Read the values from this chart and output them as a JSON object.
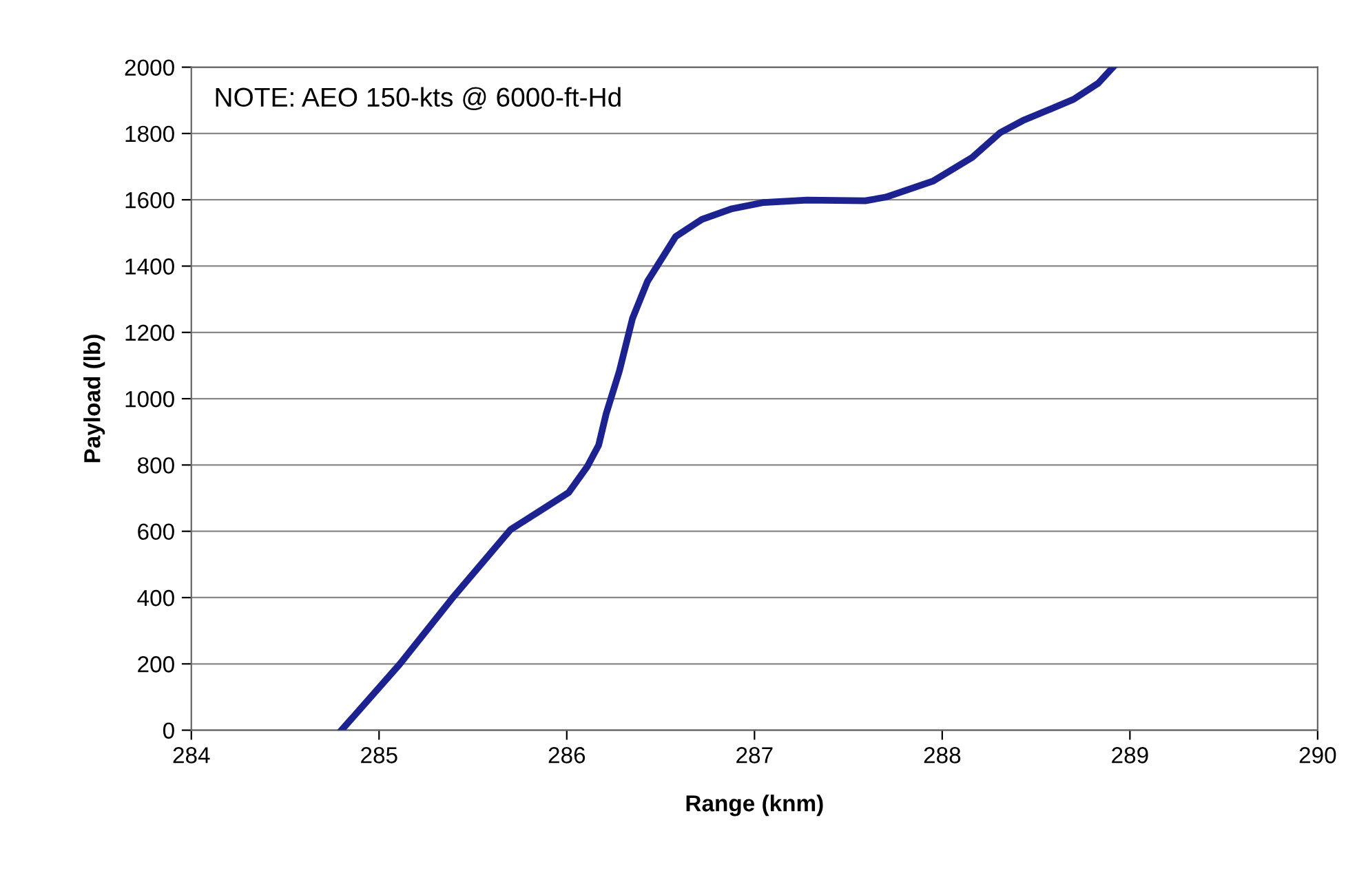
{
  "chart_data": {
    "type": "line",
    "xlabel": "Range (knm)",
    "ylabel": "Payload (lb)",
    "annotations": [
      "NOTE: AEO 150-kts @ 6000-ft-Hd"
    ],
    "x": [
      284.8,
      285.11,
      285.39,
      285.7,
      285.9,
      286.01,
      286.11,
      286.17,
      286.21,
      286.28,
      286.35,
      286.43,
      286.58,
      286.72,
      286.88,
      287.05,
      287.28,
      287.59,
      287.7,
      287.95,
      288.16,
      288.31,
      288.43,
      288.6,
      288.7,
      288.83,
      288.91
    ],
    "series": [
      {
        "color": "#1c2290",
        "values": [
          0,
          199,
          398,
          605,
          677,
          717,
          796,
          860,
          955,
          1083,
          1242,
          1354,
          1489,
          1541,
          1573,
          1592,
          1599,
          1597,
          1608,
          1656,
          1728,
          1803,
          1839,
          1879,
          1903,
          1951,
          2000
        ]
      }
    ],
    "xlim": [
      284,
      290
    ],
    "xticks": [
      284,
      285,
      286,
      287,
      288,
      289,
      290
    ],
    "ylim": [
      0,
      2000
    ],
    "yticks": [
      0,
      200,
      400,
      600,
      800,
      1000,
      1200,
      1400,
      1600,
      1800,
      2000
    ],
    "grid": "y",
    "marker": "none",
    "line_style": "solid"
  }
}
